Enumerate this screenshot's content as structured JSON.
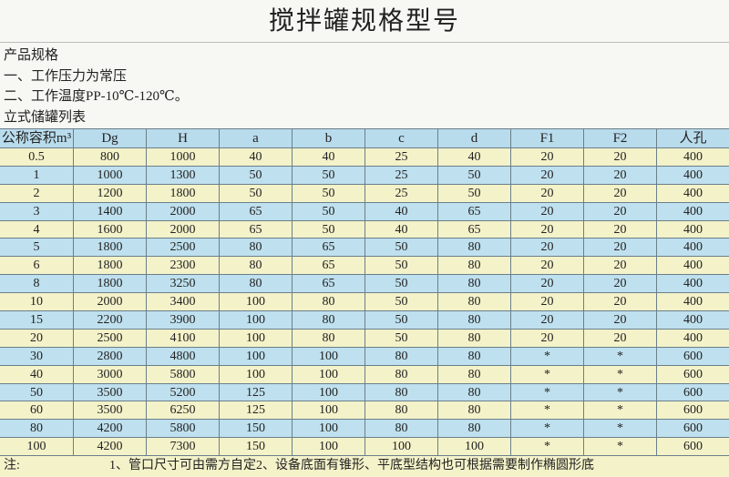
{
  "title": "搅拌罐规格型号",
  "intro": [
    "产品规格",
    "一、工作压力为常压",
    "二、工作温度PP-10℃-120℃。",
    "立式储罐列表"
  ],
  "table": {
    "headers": [
      "公称容积m³",
      "Dg",
      "H",
      "a",
      "b",
      "c",
      "d",
      "F1",
      "F2",
      "人孔"
    ],
    "rows": [
      [
        "0.5",
        "800",
        "1000",
        "40",
        "40",
        "25",
        "40",
        "20",
        "20",
        "400"
      ],
      [
        "1",
        "1000",
        "1300",
        "50",
        "50",
        "25",
        "50",
        "20",
        "20",
        "400"
      ],
      [
        "2",
        "1200",
        "1800",
        "50",
        "50",
        "25",
        "50",
        "20",
        "20",
        "400"
      ],
      [
        "3",
        "1400",
        "2000",
        "65",
        "50",
        "40",
        "65",
        "20",
        "20",
        "400"
      ],
      [
        "4",
        "1600",
        "2000",
        "65",
        "50",
        "40",
        "65",
        "20",
        "20",
        "400"
      ],
      [
        "5",
        "1800",
        "2500",
        "80",
        "65",
        "50",
        "80",
        "20",
        "20",
        "400"
      ],
      [
        "6",
        "1800",
        "2300",
        "80",
        "65",
        "50",
        "80",
        "20",
        "20",
        "400"
      ],
      [
        "8",
        "1800",
        "3250",
        "80",
        "65",
        "50",
        "80",
        "20",
        "20",
        "400"
      ],
      [
        "10",
        "2000",
        "3400",
        "100",
        "80",
        "50",
        "80",
        "20",
        "20",
        "400"
      ],
      [
        "15",
        "2200",
        "3900",
        "100",
        "80",
        "50",
        "80",
        "20",
        "20",
        "400"
      ],
      [
        "20",
        "2500",
        "4100",
        "100",
        "80",
        "50",
        "80",
        "20",
        "20",
        "400"
      ],
      [
        "30",
        "2800",
        "4800",
        "100",
        "100",
        "80",
        "80",
        "*",
        "*",
        "600"
      ],
      [
        "40",
        "3000",
        "5800",
        "100",
        "100",
        "80",
        "80",
        "*",
        "*",
        "600"
      ],
      [
        "50",
        "3500",
        "5200",
        "125",
        "100",
        "80",
        "80",
        "*",
        "*",
        "600"
      ],
      [
        "60",
        "3500",
        "6250",
        "125",
        "100",
        "80",
        "80",
        "*",
        "*",
        "600"
      ],
      [
        "80",
        "4200",
        "5800",
        "150",
        "100",
        "80",
        "80",
        "*",
        "*",
        "600"
      ],
      [
        "100",
        "4200",
        "7300",
        "150",
        "100",
        "100",
        "100",
        "*",
        "*",
        "600"
      ]
    ],
    "note_label": "注:",
    "note": "1、管口尺寸可由需方自定2、设备底面有锥形、平底型结构也可根据需要制作椭圆形底"
  }
}
